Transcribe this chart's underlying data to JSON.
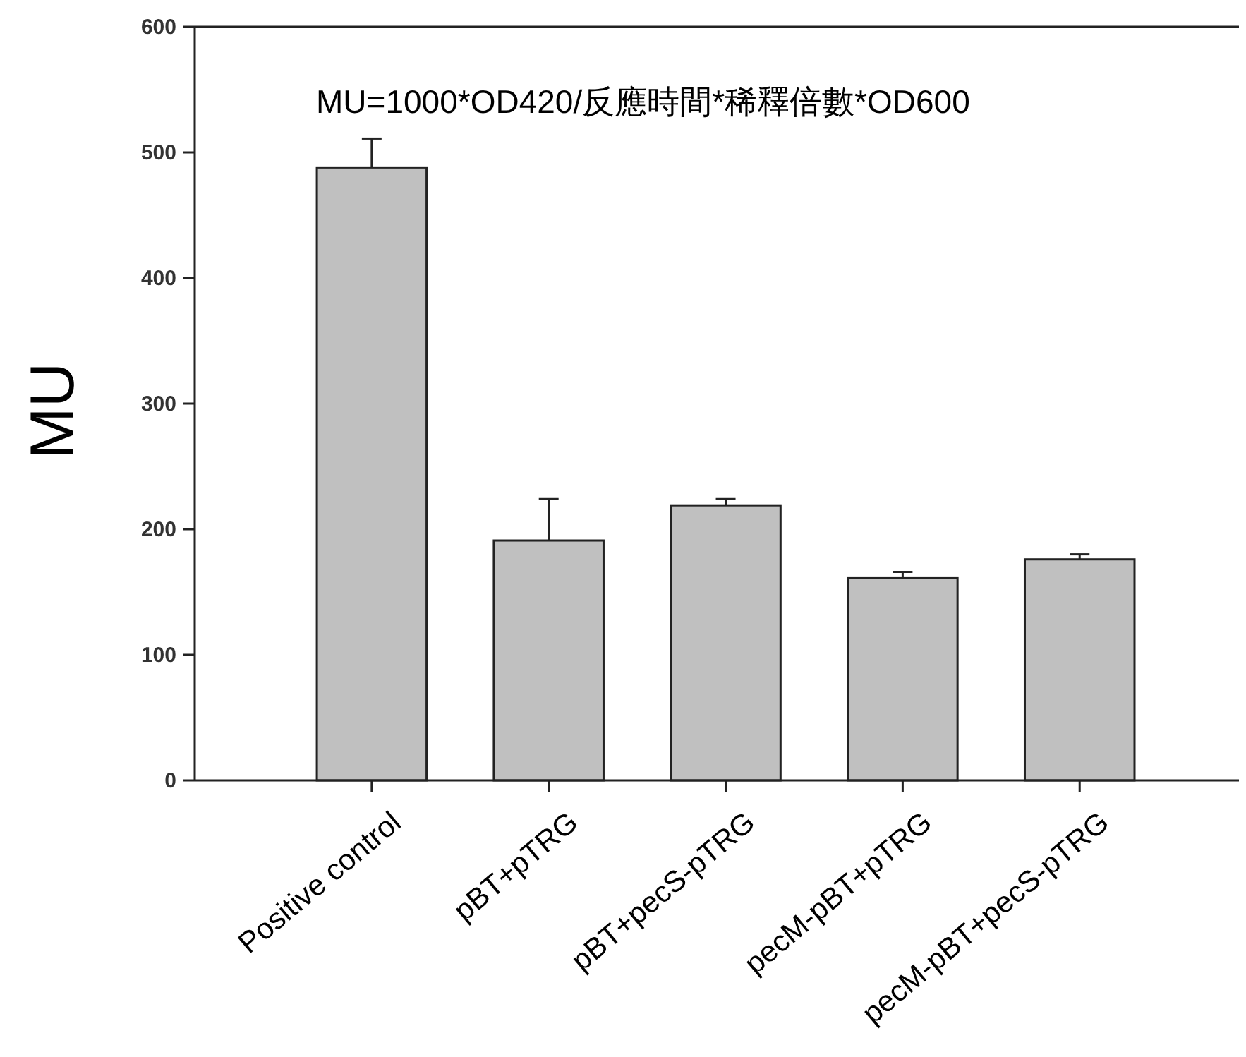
{
  "chart_data": {
    "type": "bar",
    "categories": [
      "Positive control",
      "pBT+pTRG",
      "pBT+pecS-pTRG",
      "pecM-pBT+pTRG",
      "pecM-pBT+pecS-pTRG"
    ],
    "values": [
      488,
      191,
      219,
      161,
      176
    ],
    "errors": [
      23,
      33,
      5,
      5,
      4
    ],
    "color": "#c0c0c0",
    "ylabel": "MU",
    "annotations": [
      "MU=1000*OD420/反應時間*稀釋倍數*OD600"
    ],
    "ylim": [
      0,
      600
    ],
    "yticks": [
      0,
      100,
      200,
      300,
      400,
      500,
      600
    ]
  }
}
